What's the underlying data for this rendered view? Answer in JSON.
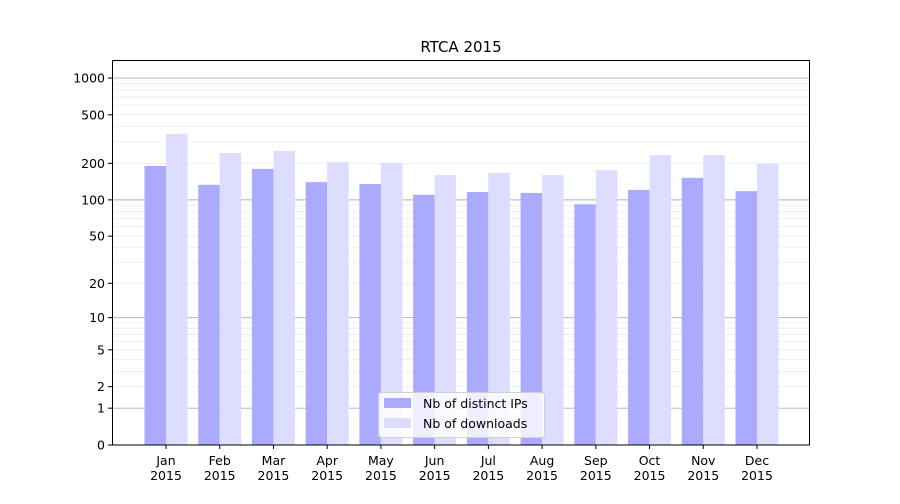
{
  "chart_data": {
    "type": "bar",
    "title": "RTCA 2015",
    "xlabel": "",
    "ylabel": "",
    "yscale": "log(x+1)",
    "ylim": [
      0,
      1300
    ],
    "yticks": [
      0,
      1,
      2,
      5,
      10,
      20,
      50,
      100,
      200,
      500,
      1000
    ],
    "grid": true,
    "legend_position": "bottom-center",
    "categories": [
      "Jan\n2015",
      "Feb\n2015",
      "Mar\n2015",
      "Apr\n2015",
      "May\n2015",
      "Jun\n2015",
      "Jul\n2015",
      "Aug\n2015",
      "Sep\n2015",
      "Oct\n2015",
      "Nov\n2015",
      "Dec\n2015"
    ],
    "series": [
      {
        "name": "Nb of distinct IPs",
        "color": "#aaaaff",
        "values": [
          190,
          133,
          180,
          140,
          135,
          110,
          116,
          114,
          92,
          121,
          152,
          118
        ]
      },
      {
        "name": "Nb of downloads",
        "color": "#ddddff",
        "values": [
          348,
          243,
          253,
          205,
          201,
          160,
          167,
          160,
          176,
          234,
          234,
          198
        ]
      }
    ]
  }
}
